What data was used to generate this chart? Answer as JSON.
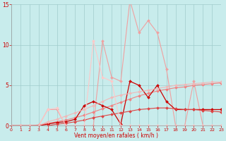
{
  "xlabel": "Vent moyen/en rafales ( km/h )",
  "xlim": [
    0,
    23
  ],
  "ylim": [
    0,
    15
  ],
  "yticks": [
    0,
    5,
    10,
    15
  ],
  "xticks": [
    0,
    1,
    2,
    3,
    4,
    5,
    6,
    7,
    8,
    9,
    10,
    11,
    12,
    13,
    14,
    15,
    16,
    17,
    18,
    19,
    20,
    21,
    22,
    23
  ],
  "bg_color": "#c8ecec",
  "grid_color": "#a0cccc",
  "series": [
    {
      "x": [
        0,
        1,
        2,
        3,
        4,
        5,
        6,
        7,
        8,
        9,
        10,
        11,
        12,
        13,
        14,
        15,
        16,
        17,
        18,
        19,
        20,
        21,
        22,
        23
      ],
      "y": [
        0,
        0,
        0,
        0,
        2,
        2,
        0,
        0,
        0,
        0,
        10.5,
        6,
        5.5,
        15.5,
        11.5,
        13,
        11.5,
        7,
        0,
        0,
        5.5,
        0,
        0,
        0
      ],
      "color": "#f0a0a0",
      "lw": 0.8,
      "marker": "D",
      "ms": 2.0
    },
    {
      "x": [
        0,
        1,
        2,
        3,
        4,
        5,
        6,
        7,
        8,
        9,
        10,
        11,
        12,
        13,
        14,
        15,
        16,
        17,
        18,
        19,
        20,
        21,
        22,
        23
      ],
      "y": [
        0,
        0,
        0,
        0.1,
        0.3,
        0.5,
        0.7,
        1.0,
        1.3,
        1.7,
        2.1,
        2.5,
        2.9,
        3.3,
        3.7,
        4.0,
        4.3,
        4.5,
        4.7,
        4.8,
        5.0,
        5.1,
        5.2,
        5.3
      ],
      "color": "#f08080",
      "lw": 0.8,
      "marker": "D",
      "ms": 2.0
    },
    {
      "x": [
        0,
        1,
        2,
        3,
        4,
        5,
        6,
        7,
        8,
        9,
        10,
        11,
        12,
        13,
        14,
        15,
        16,
        17,
        18,
        19,
        20,
        21,
        22,
        23
      ],
      "y": [
        0,
        0,
        0,
        0,
        0.2,
        0.4,
        0.5,
        0.8,
        2.5,
        3.0,
        2.5,
        2.0,
        0.2,
        5.5,
        5.0,
        3.5,
        5.0,
        3.0,
        2.0,
        2.0,
        2.0,
        2.0,
        2.0,
        2.0
      ],
      "color": "#cc0000",
      "lw": 0.9,
      "marker": "D",
      "ms": 2.0
    },
    {
      "x": [
        0,
        1,
        2,
        3,
        4,
        5,
        6,
        7,
        8,
        9,
        10,
        11,
        12,
        13,
        14,
        15,
        16,
        17,
        18,
        19,
        20,
        21,
        22,
        23
      ],
      "y": [
        0,
        0,
        0,
        0,
        0,
        0.2,
        0.3,
        0.5,
        0.7,
        1.0,
        1.2,
        1.4,
        1.6,
        1.8,
        2.0,
        2.1,
        2.2,
        2.2,
        2.1,
        2.0,
        2.0,
        1.9,
        1.8,
        1.7
      ],
      "color": "#dd4444",
      "lw": 0.8,
      "marker": "D",
      "ms": 2.0
    },
    {
      "x": [
        0,
        1,
        2,
        3,
        4,
        5,
        6,
        7,
        8,
        9,
        10,
        11,
        12,
        13,
        14,
        15,
        16,
        17,
        18,
        19,
        20,
        21,
        22,
        23
      ],
      "y": [
        0,
        0,
        0,
        0,
        0.5,
        0.8,
        1.2,
        1.6,
        2.0,
        2.5,
        3.0,
        3.5,
        3.8,
        4.0,
        4.2,
        4.4,
        4.6,
        4.8,
        5.0,
        5.1,
        5.2,
        5.3,
        5.4,
        5.4
      ],
      "color": "#f0b8b8",
      "lw": 0.8,
      "marker": "D",
      "ms": 2.0
    },
    {
      "x": [
        0,
        1,
        2,
        3,
        4,
        5,
        6,
        7,
        8,
        9,
        10,
        11,
        12,
        13,
        14,
        15,
        16,
        17,
        18,
        19,
        20,
        21,
        22,
        23
      ],
      "y": [
        0,
        0,
        0,
        0,
        2,
        2.2,
        0,
        0,
        0,
        10.5,
        6,
        5.5,
        0,
        0,
        0,
        0,
        0,
        0,
        0,
        0,
        0,
        0,
        0,
        0
      ],
      "color": "#ffc8c8",
      "lw": 0.8,
      "marker": "D",
      "ms": 2.0
    }
  ]
}
